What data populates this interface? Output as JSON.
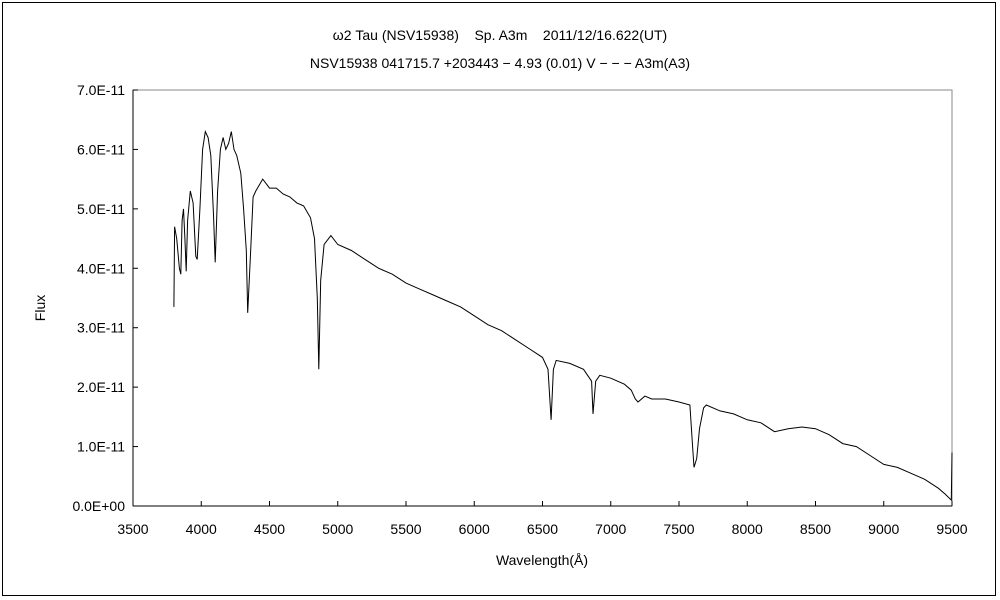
{
  "chart_data": {
    "type": "line",
    "title": "ω2 Tau (NSV15938)    Sp. A3m    2011/12/16.622(UT)",
    "subtitle": "NSV15938 041715.7 +203443 − 4.93 (0.01) V − − − A3m(A3)",
    "xlabel": "Wavelength(Å)",
    "ylabel": "Flux",
    "xlim": [
      3500,
      9500
    ],
    "ylim": [
      0,
      7e-11
    ],
    "xticks": [
      "3500",
      "4000",
      "4500",
      "5000",
      "5500",
      "6000",
      "6500",
      "7000",
      "7500",
      "8000",
      "8500",
      "9000",
      "9500"
    ],
    "yticks": [
      "0.0E+00",
      "1.0E-11",
      "2.0E-11",
      "3.0E-11",
      "4.0E-11",
      "5.0E-11",
      "6.0E-11",
      "7.0E-11"
    ],
    "grid": false,
    "line_color": "#000000",
    "series": [
      {
        "x": [
          3800,
          3805,
          3820,
          3840,
          3850,
          3860,
          3870,
          3880,
          3890,
          3900,
          3920,
          3940,
          3960,
          3970,
          3990,
          4010,
          4030,
          4050,
          4070,
          4090,
          4102,
          4120,
          4140,
          4160,
          4180,
          4200,
          4220,
          4240,
          4260,
          4290,
          4310,
          4330,
          4340,
          4360,
          4380,
          4400,
          4450,
          4500,
          4550,
          4600,
          4650,
          4700,
          4750,
          4800,
          4830,
          4850,
          4861,
          4875,
          4900,
          4950,
          5000,
          5100,
          5200,
          5300,
          5400,
          5500,
          5600,
          5700,
          5800,
          5900,
          6000,
          6100,
          6200,
          6300,
          6400,
          6500,
          6540,
          6563,
          6580,
          6600,
          6700,
          6800,
          6860,
          6870,
          6890,
          6920,
          7000,
          7100,
          7150,
          7180,
          7200,
          7250,
          7300,
          7400,
          7500,
          7580,
          7600,
          7610,
          7630,
          7650,
          7680,
          7700,
          7800,
          7900,
          8000,
          8100,
          8200,
          8300,
          8400,
          8500,
          8600,
          8700,
          8800,
          8900,
          9000,
          9100,
          9200,
          9300,
          9400,
          9450,
          9495,
          9500
        ],
        "y": [
          3.35e-11,
          4.7e-11,
          4.5e-11,
          4e-11,
          3.9e-11,
          4.8e-11,
          5e-11,
          4.5e-11,
          3.95e-11,
          4.8e-11,
          5.3e-11,
          5.1e-11,
          4.2e-11,
          4.15e-11,
          5e-11,
          6e-11,
          6.3e-11,
          6.2e-11,
          5.9e-11,
          4.9e-11,
          4.1e-11,
          5.3e-11,
          6e-11,
          6.2e-11,
          6e-11,
          6.1e-11,
          6.3e-11,
          6e-11,
          5.9e-11,
          5.6e-11,
          5e-11,
          4.3e-11,
          3.25e-11,
          4.2e-11,
          5.2e-11,
          5.3e-11,
          5.5e-11,
          5.35e-11,
          5.35e-11,
          5.25e-11,
          5.2e-11,
          5.1e-11,
          5.05e-11,
          4.85e-11,
          4.5e-11,
          3.5e-11,
          2.3e-11,
          3.8e-11,
          4.4e-11,
          4.55e-11,
          4.4e-11,
          4.3e-11,
          4.15e-11,
          4e-11,
          3.9e-11,
          3.75e-11,
          3.65e-11,
          3.55e-11,
          3.45e-11,
          3.35e-11,
          3.2e-11,
          3.05e-11,
          2.95e-11,
          2.8e-11,
          2.65e-11,
          2.5e-11,
          2.3e-11,
          1.45e-11,
          2.3e-11,
          2.45e-11,
          2.4e-11,
          2.3e-11,
          2.1e-11,
          1.55e-11,
          2.1e-11,
          2.2e-11,
          2.15e-11,
          2.05e-11,
          1.95e-11,
          1.8e-11,
          1.75e-11,
          1.85e-11,
          1.8e-11,
          1.8e-11,
          1.75e-11,
          1.7e-11,
          1e-11,
          6.5e-12,
          8e-12,
          1.3e-11,
          1.65e-11,
          1.7e-11,
          1.6e-11,
          1.55e-11,
          1.45e-11,
          1.4e-11,
          1.25e-11,
          1.3e-11,
          1.33e-11,
          1.3e-11,
          1.2e-11,
          1.05e-11,
          1e-11,
          8.5e-12,
          7e-12,
          6.5e-12,
          5.5e-12,
          4.5e-12,
          3e-12,
          2e-12,
          1e-12,
          9e-12
        ]
      }
    ]
  }
}
